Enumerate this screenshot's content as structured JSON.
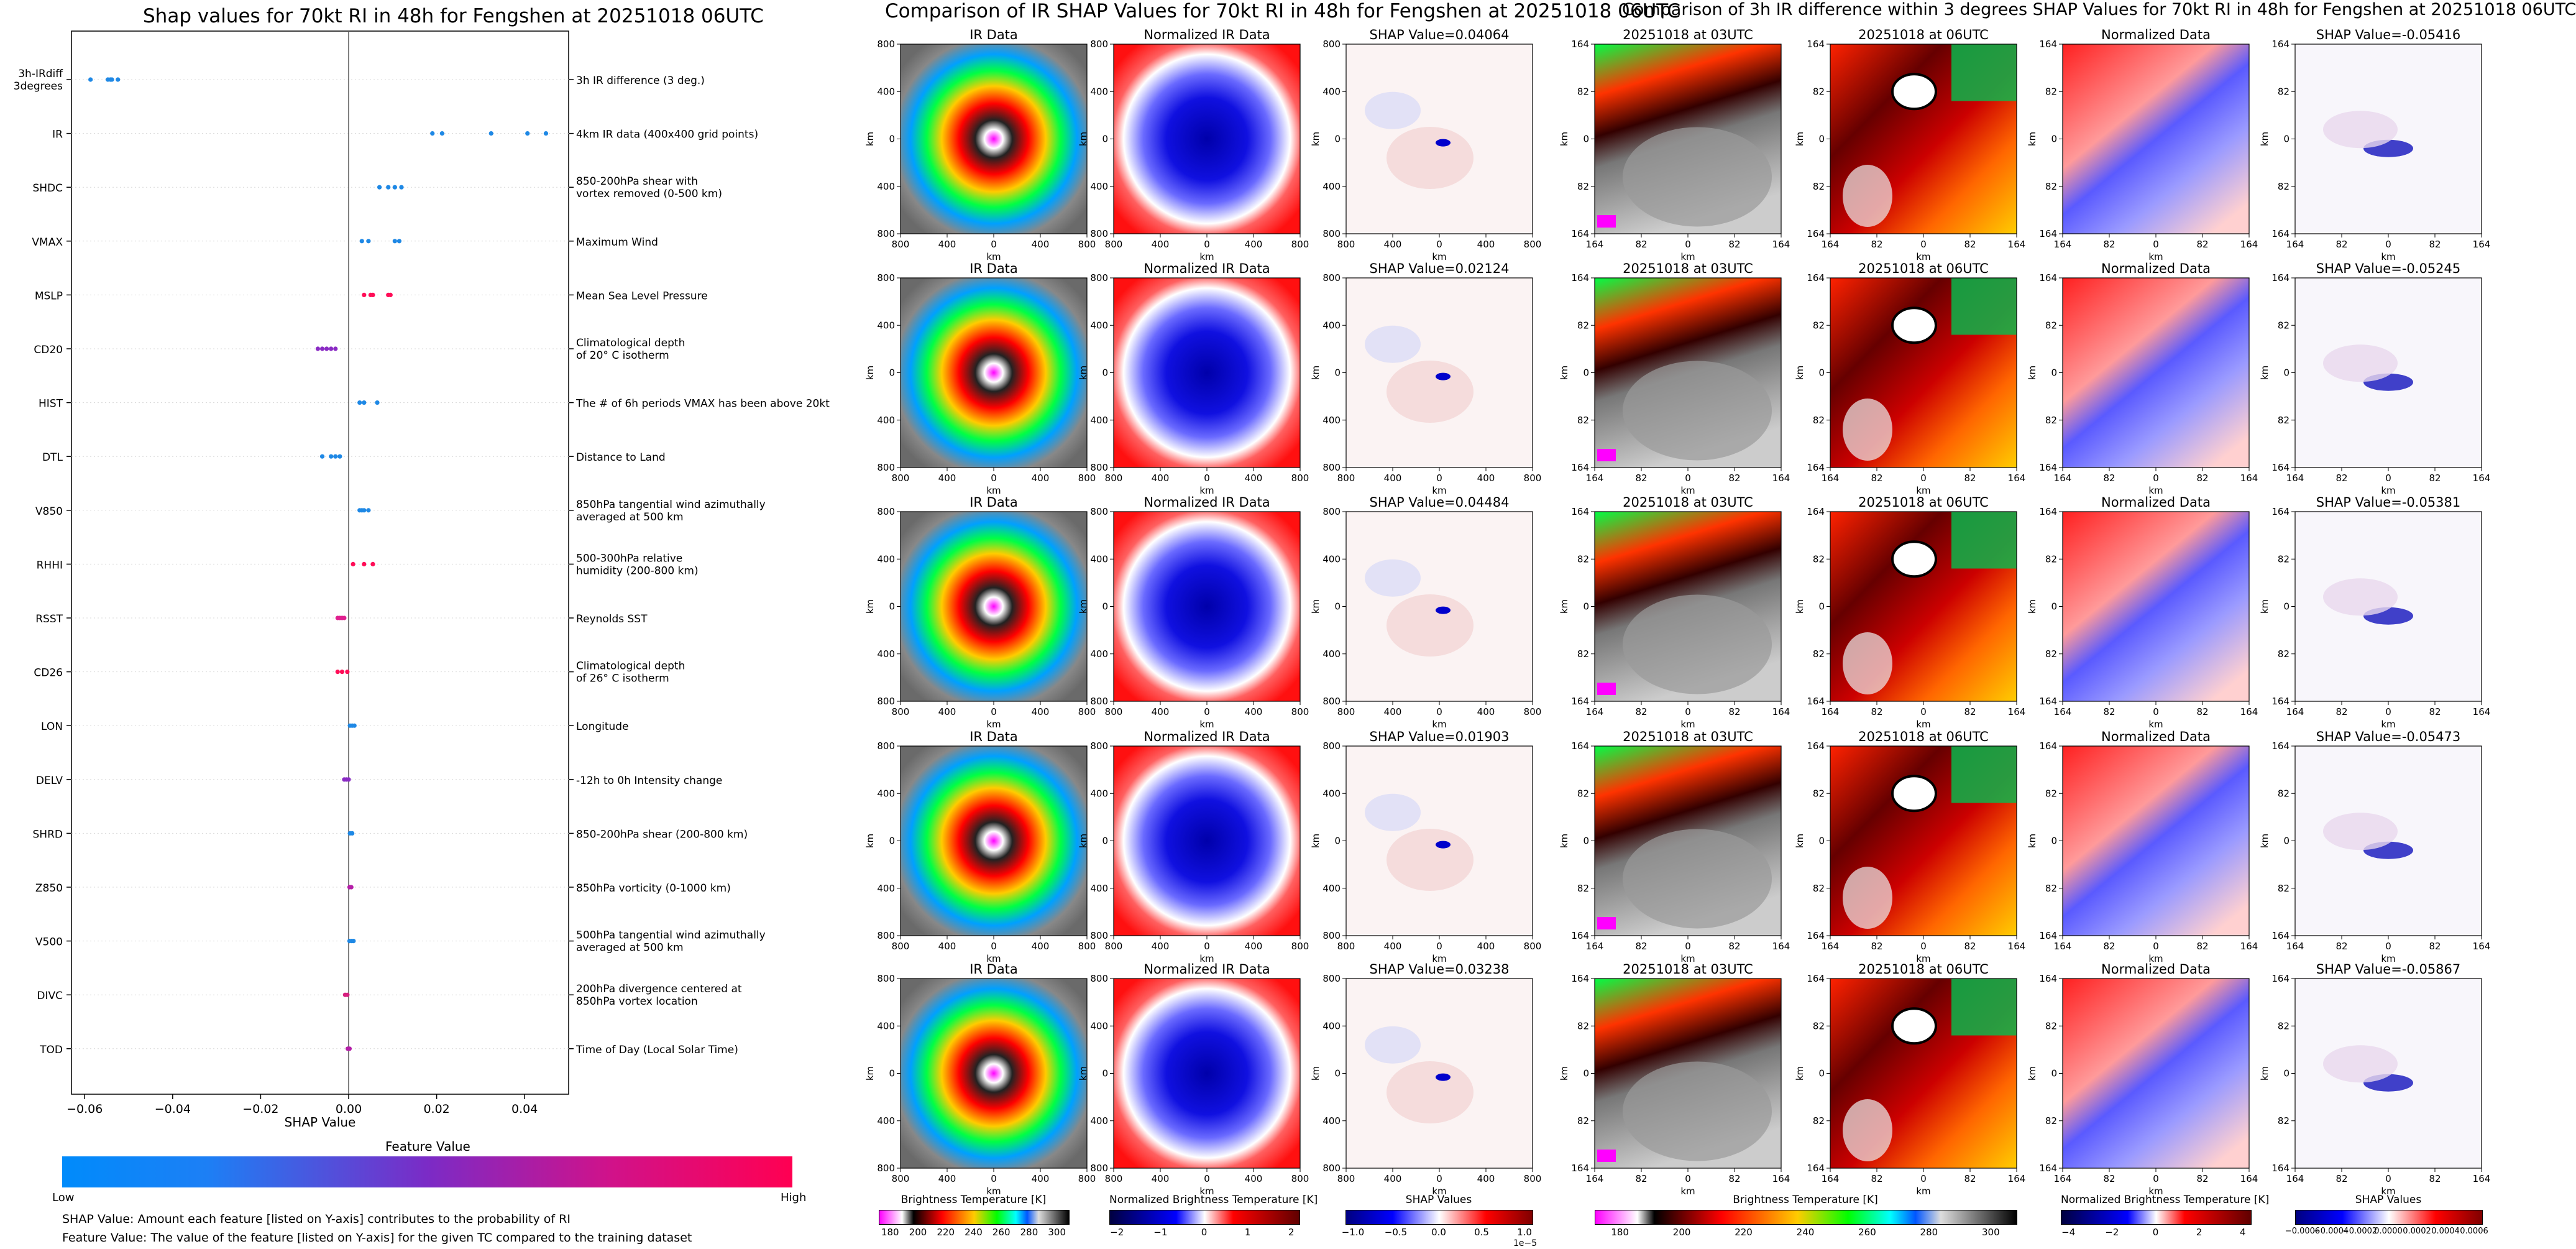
{
  "titles": {
    "shap_summary": "Shap values for 70kt RI in 48h for Fengshen at 20251018 06UTC",
    "ir_comparison": "Comparison of IR SHAP Values for 70kt RI in 48h for Fengshen at 20251018 06UTC",
    "ir_diff_comparison": "Comparison of 3h IR difference within 3 degrees SHAP Values for 70kt RI in 48h for Fengshen at 20251018 06UTC"
  },
  "legend_bar": {
    "title": "Feature Value",
    "low": "Low",
    "high": "High",
    "note1": "SHAP Value: Amount each feature [listed on Y-axis] contributes to the probability of RI",
    "note2": "Feature Value: The value of the feature [listed on Y-axis] for the given TC compared to the training dataset"
  },
  "ir_grid": {
    "col_titles": [
      "IR Data",
      "Normalized IR Data"
    ],
    "shap_titles": [
      "SHAP Value=0.04064",
      "SHAP Value=0.02124",
      "SHAP Value=0.04484",
      "SHAP Value=0.01903",
      "SHAP Value=0.03238"
    ],
    "ticks": [
      "800",
      "400",
      "0",
      "400",
      "800"
    ],
    "axis_label": "km"
  },
  "diff_grid": {
    "col1_titles": [
      "20251018 at 03UTC",
      "20251018 at 03UTC",
      "20251018 at 03UTC",
      "20251018 at 03UTC",
      "20251018 at 03UTC"
    ],
    "col2_title": "20251018 at 06UTC",
    "col3_title": "Normalized Data",
    "shap_titles": [
      "SHAP Value=-0.05416",
      "SHAP Value=-0.05245",
      "SHAP Value=-0.05381",
      "SHAP Value=-0.05473",
      "SHAP Value=-0.05867"
    ],
    "ticks": [
      "164",
      "82",
      "0",
      "82",
      "164"
    ],
    "axis_label": "km"
  },
  "colorbars": [
    {
      "label": "Brightness Temperature [K]",
      "ticks": [
        "180",
        "200",
        "220",
        "240",
        "260",
        "280",
        "300"
      ]
    },
    {
      "label": "Normalized Brightness Temperature [K]",
      "ticks": [
        "−2",
        "−1",
        "0",
        "1",
        "2"
      ]
    },
    {
      "label": "SHAP Values",
      "ticks": [
        "−1.0",
        "−0.5",
        "0.0",
        "0.5",
        "1.0"
      ],
      "exponent": "1e−5"
    },
    {
      "label": "Brightness Temperature [K]",
      "ticks": [
        "180",
        "200",
        "220",
        "240",
        "260",
        "280",
        "300"
      ]
    },
    {
      "label": "Normalized Brightness Temperature [K]",
      "ticks": [
        "−4",
        "−2",
        "0",
        "2",
        "4"
      ]
    },
    {
      "label": "SHAP Values",
      "ticks": [
        "−0.0006",
        "−0.0004",
        "−0.0002",
        "0.0000",
        "0.0002",
        "0.0004",
        "0.0006"
      ]
    }
  ],
  "colors": {
    "low": "#1e88e5",
    "mid": "#8a2bc4",
    "high": "#ff0d57"
  },
  "chart_data": {
    "type": "scatter",
    "title": "Shap values for 70kt RI in 48h for Fengshen at 20251018 06UTC",
    "xlabel": "SHAP Value",
    "xlim": [
      -0.063,
      0.05
    ],
    "xticks": [
      "−0.06",
      "−0.04",
      "−0.02",
      "0.00",
      "0.02",
      "0.04"
    ],
    "xtick_values": [
      -0.06,
      -0.04,
      -0.02,
      0.0,
      0.02,
      0.04
    ],
    "features": [
      {
        "name": "3h-IRdiff 3degrees",
        "desc": "3h IR difference (3 deg.)",
        "color": "#1e88e5",
        "values": [
          -0.05867,
          -0.05473,
          -0.05416,
          -0.05381,
          -0.05245
        ]
      },
      {
        "name": "IR",
        "desc": "4km IR data (400x400 grid points)",
        "color": "#1e88e5",
        "values": [
          0.01903,
          0.02124,
          0.03238,
          0.04064,
          0.04484
        ]
      },
      {
        "name": "SHDC",
        "desc": "850-200hPa shear with vortex removed (0-500 km)",
        "color": "#1e88e5",
        "values": [
          0.007,
          0.009,
          0.0105,
          0.012
        ]
      },
      {
        "name": "VMAX",
        "desc": "Maximum Wind",
        "color": "#1e88e5",
        "values": [
          0.003,
          0.0045,
          0.0105,
          0.0115
        ]
      },
      {
        "name": "MSLP",
        "desc": "Mean Sea Level Pressure",
        "color": "#ff0d57",
        "values": [
          0.0035,
          0.005,
          0.0055,
          0.009,
          0.0095
        ]
      },
      {
        "name": "CD20",
        "desc": "Climatological depth of 20° C isotherm",
        "color": "#8a2bc4",
        "values": [
          -0.007,
          -0.006,
          -0.005,
          -0.004,
          -0.003
        ]
      },
      {
        "name": "HIST",
        "desc": "The # of 6h periods VMAX has been above 20kt",
        "color": "#1e88e5",
        "values": [
          0.0025,
          0.0035,
          0.0065
        ]
      },
      {
        "name": "DTL",
        "desc": "Distance to Land",
        "color": "#1e88e5",
        "values": [
          -0.006,
          -0.004,
          -0.003,
          -0.002
        ]
      },
      {
        "name": "V850",
        "desc": "850hPa tangential wind azimuthally averaged at 500 km",
        "color": "#1e88e5",
        "values": [
          0.0025,
          0.003,
          0.0035,
          0.0045
        ]
      },
      {
        "name": "RHHI",
        "desc": "500-300hPa relative humidity (200-800 km)",
        "color": "#ff0d57",
        "values": [
          0.001,
          0.0035,
          0.0055
        ]
      },
      {
        "name": "RSST",
        "desc": "Reynolds SST",
        "color": "#e0208f",
        "values": [
          -0.0025,
          -0.002,
          -0.0015,
          -0.001
        ]
      },
      {
        "name": "CD26",
        "desc": "Climatological depth of 26° C isotherm",
        "color": "#ff0d57",
        "values": [
          -0.0025,
          -0.0015,
          -0.0003
        ]
      },
      {
        "name": "LON",
        "desc": "Longitude",
        "color": "#1e88e5",
        "values": [
          0.0003,
          0.0008,
          0.0013
        ]
      },
      {
        "name": "DELV",
        "desc": "-12h to 0h Intensity change",
        "color": "#8a2bc4",
        "values": [
          -0.001,
          -0.0005,
          0.0
        ]
      },
      {
        "name": "SHRD",
        "desc": "850-200hPa shear (200-800 km)",
        "color": "#1e88e5",
        "values": [
          0.0003,
          0.0008
        ]
      },
      {
        "name": "Z850",
        "desc": "850hPa vorticity (0-1000 km)",
        "color": "#b51fa8",
        "values": [
          0.0002,
          0.0006
        ]
      },
      {
        "name": "V500",
        "desc": "500hPa tangential wind azimuthally averaged at 500 km",
        "color": "#1e88e5",
        "values": [
          0.0002,
          0.0007,
          0.0011
        ]
      },
      {
        "name": "DIVC",
        "desc": "200hPa divergence centered at 850hPa vortex location",
        "color": "#d6207f",
        "values": [
          -0.0008,
          -0.0003
        ]
      },
      {
        "name": "TOD",
        "desc": "Time of Day (Local Solar Time)",
        "color": "#b51fa8",
        "values": [
          -0.0002,
          0.0002
        ]
      }
    ]
  }
}
